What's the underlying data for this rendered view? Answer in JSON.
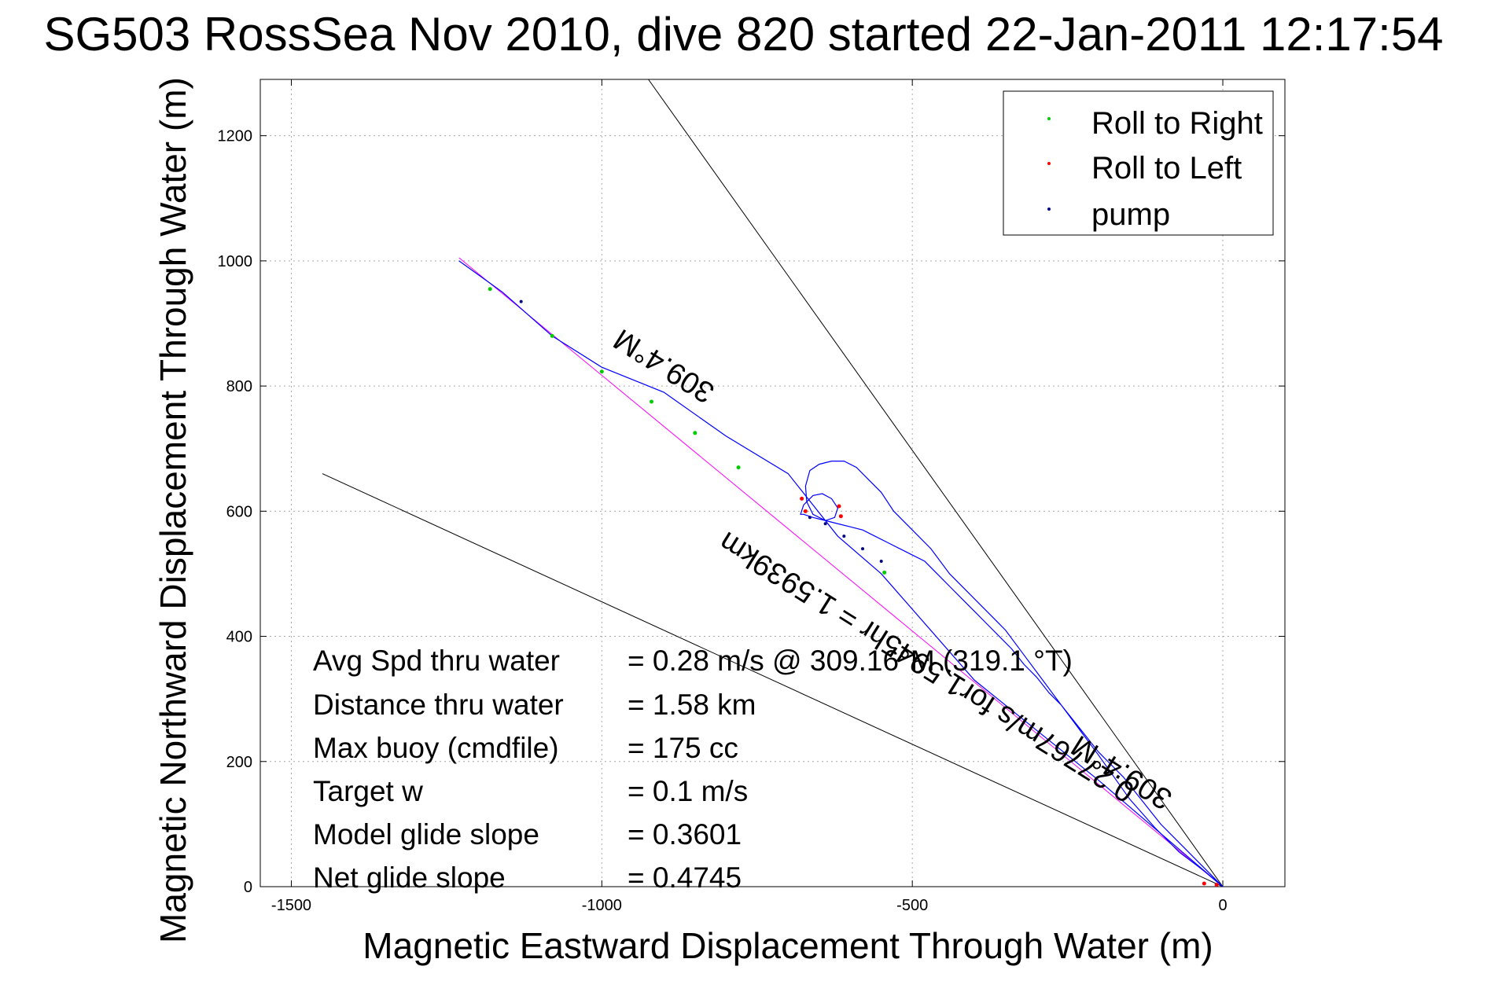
{
  "chart_data": {
    "type": "line",
    "title": "SG503 RossSea Nov 2010, dive 820 started 22-Jan-2011 12:17:54",
    "xlabel": "Magnetic Eastward Displacement Through Water (m)",
    "ylabel": "Magnetic Northward Displacement Through Water (m)",
    "xlim": [
      -1550,
      100
    ],
    "ylim": [
      0,
      1290
    ],
    "xticks": [
      -1500,
      -1000,
      -500,
      0
    ],
    "xtick_labels": [
      "-1500",
      "-1000",
      "-500",
      "0"
    ],
    "yticks": [
      0,
      200,
      400,
      600,
      800,
      1000,
      1200
    ],
    "ytick_labels": [
      "0",
      "200",
      "400",
      "600",
      "800",
      "1000",
      "1200"
    ],
    "grid": true,
    "legend_position": "top-right",
    "legend": [
      {
        "label": "Roll to Right",
        "color": "#00cc00"
      },
      {
        "label": "Roll to Left",
        "color": "#ff0000"
      },
      {
        "label": "pump",
        "color": "#000080"
      }
    ],
    "series": [
      {
        "color": "#0000ff",
        "x": [
          0,
          -30,
          -70,
          -110,
          -150,
          -175,
          -200,
          -230,
          -260,
          -290,
          -320,
          -350,
          -380,
          -410,
          -440,
          -470,
          -500,
          -530,
          -550,
          -570,
          -590,
          -610,
          -630,
          -650,
          -665,
          -672,
          -670,
          -660,
          -640,
          -625,
          -620,
          -630,
          -645,
          -660,
          -675,
          -680,
          -675,
          -660,
          -640,
          -620,
          -600,
          -580,
          -560,
          -540,
          -520,
          -500,
          -480,
          -460,
          -440,
          -420,
          -400,
          -380,
          -360,
          -340,
          -320,
          -300,
          -280,
          -260,
          -240,
          -220,
          -200,
          -180,
          -160,
          -140,
          -120,
          -100,
          -80,
          -60,
          -40,
          -20,
          0
        ],
        "y": [
          0,
          25,
          55,
          95,
          140,
          175,
          210,
          250,
          290,
          330,
          370,
          410,
          440,
          470,
          500,
          540,
          570,
          600,
          630,
          650,
          670,
          680,
          680,
          675,
          665,
          640,
          615,
          595,
          585,
          590,
          605,
          620,
          628,
          625,
          610,
          595,
          595,
          590,
          585,
          580,
          575,
          570,
          560,
          550,
          540,
          530,
          520,
          500,
          480,
          460,
          440,
          420,
          400,
          380,
          355,
          335,
          310,
          290,
          265,
          240,
          215,
          195,
          175,
          150,
          125,
          100,
          80,
          60,
          40,
          20,
          0
        ]
      }
    ]
  },
  "legend_items": {
    "right": "Roll to Right",
    "left": "Roll to Left",
    "pump": "pump"
  },
  "annotations": {
    "heading_upper": "309.4°M",
    "heading_lower": "309.4°M",
    "speed_line": "0.27767m/s for1.5945hr = 1.5939km"
  },
  "stats": [
    {
      "label": "Avg Spd thru water",
      "value": "=  0.28 m/s @ 309.16°M (319.1 °T)"
    },
    {
      "label": "Distance thru water",
      "value": "=  1.58 km"
    },
    {
      "label": "Max buoy (cmdfile)",
      "value": "= 175 cc"
    },
    {
      "label": "Target w",
      "value": "= 0.1 m/s"
    },
    {
      "label": "Model glide slope",
      "value": "= 0.3601"
    },
    {
      "label": "Net glide slope",
      "value": "= 0.4745"
    }
  ]
}
